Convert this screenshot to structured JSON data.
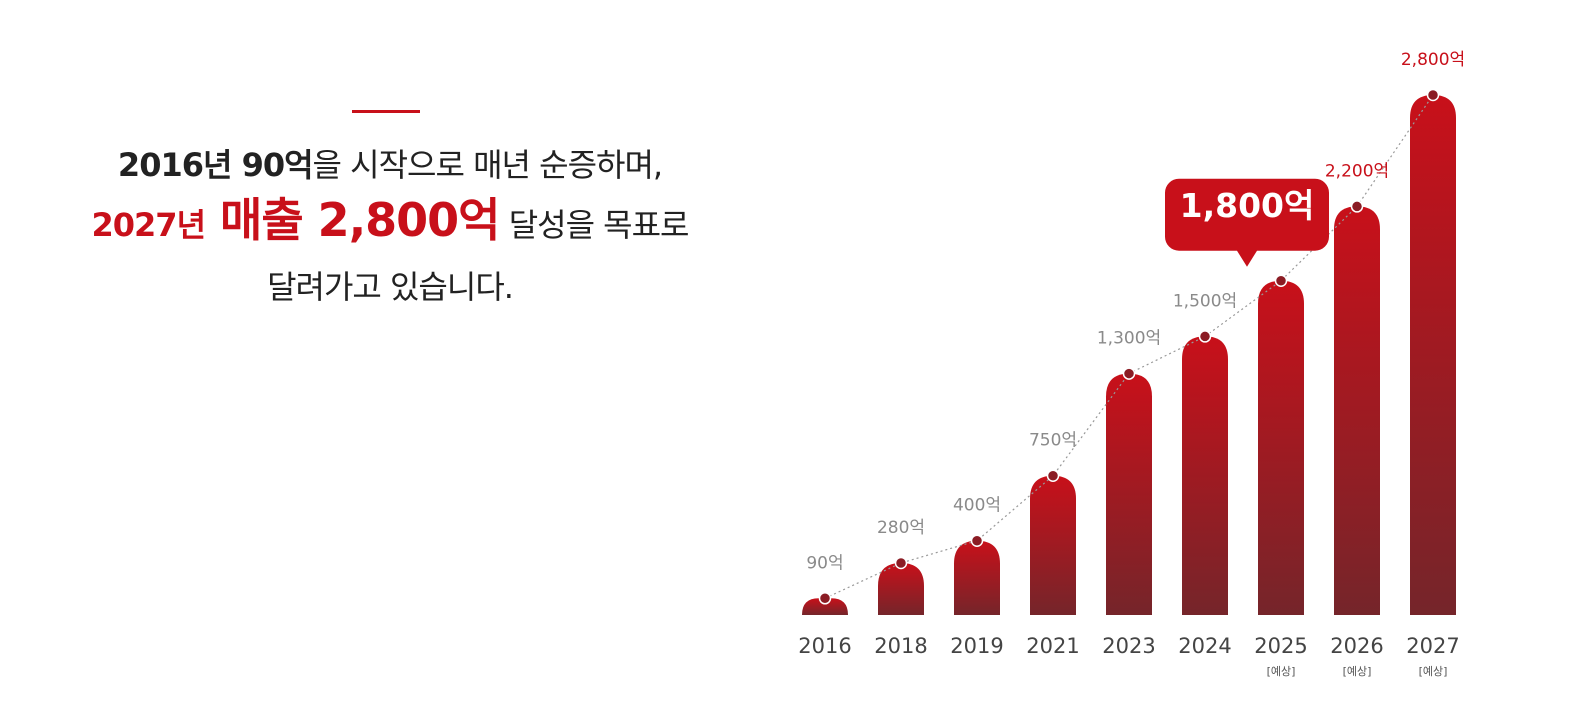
{
  "headline": {
    "line1": [
      "2016년 90억",
      "을 시작으로 매년 순증하며,"
    ],
    "line2": [
      "2027년",
      " 매출 2,800억",
      " 달성을 목표로"
    ],
    "line3": [
      "달려가고 있습니다."
    ]
  },
  "chart_data": {
    "type": "bar",
    "categories": [
      "2016",
      "2018",
      "2019",
      "2021",
      "2023",
      "2024",
      "2025",
      "2026",
      "2027"
    ],
    "forecast_labels": [
      null,
      null,
      null,
      null,
      null,
      null,
      "[예상]",
      "[예상]",
      "[예상]"
    ],
    "values": [
      90,
      280,
      400,
      750,
      1300,
      1500,
      1800,
      2200,
      2800
    ],
    "value_labels": [
      "90억",
      "280억",
      "400억",
      "750억",
      "1,300억",
      "1,500억",
      "1,800억",
      "2,200억",
      "2,800억"
    ],
    "highlight_category": "2025",
    "color": "#c8101a",
    "color_bottom": "#75252a",
    "label_color": "#8a8a8a"
  }
}
